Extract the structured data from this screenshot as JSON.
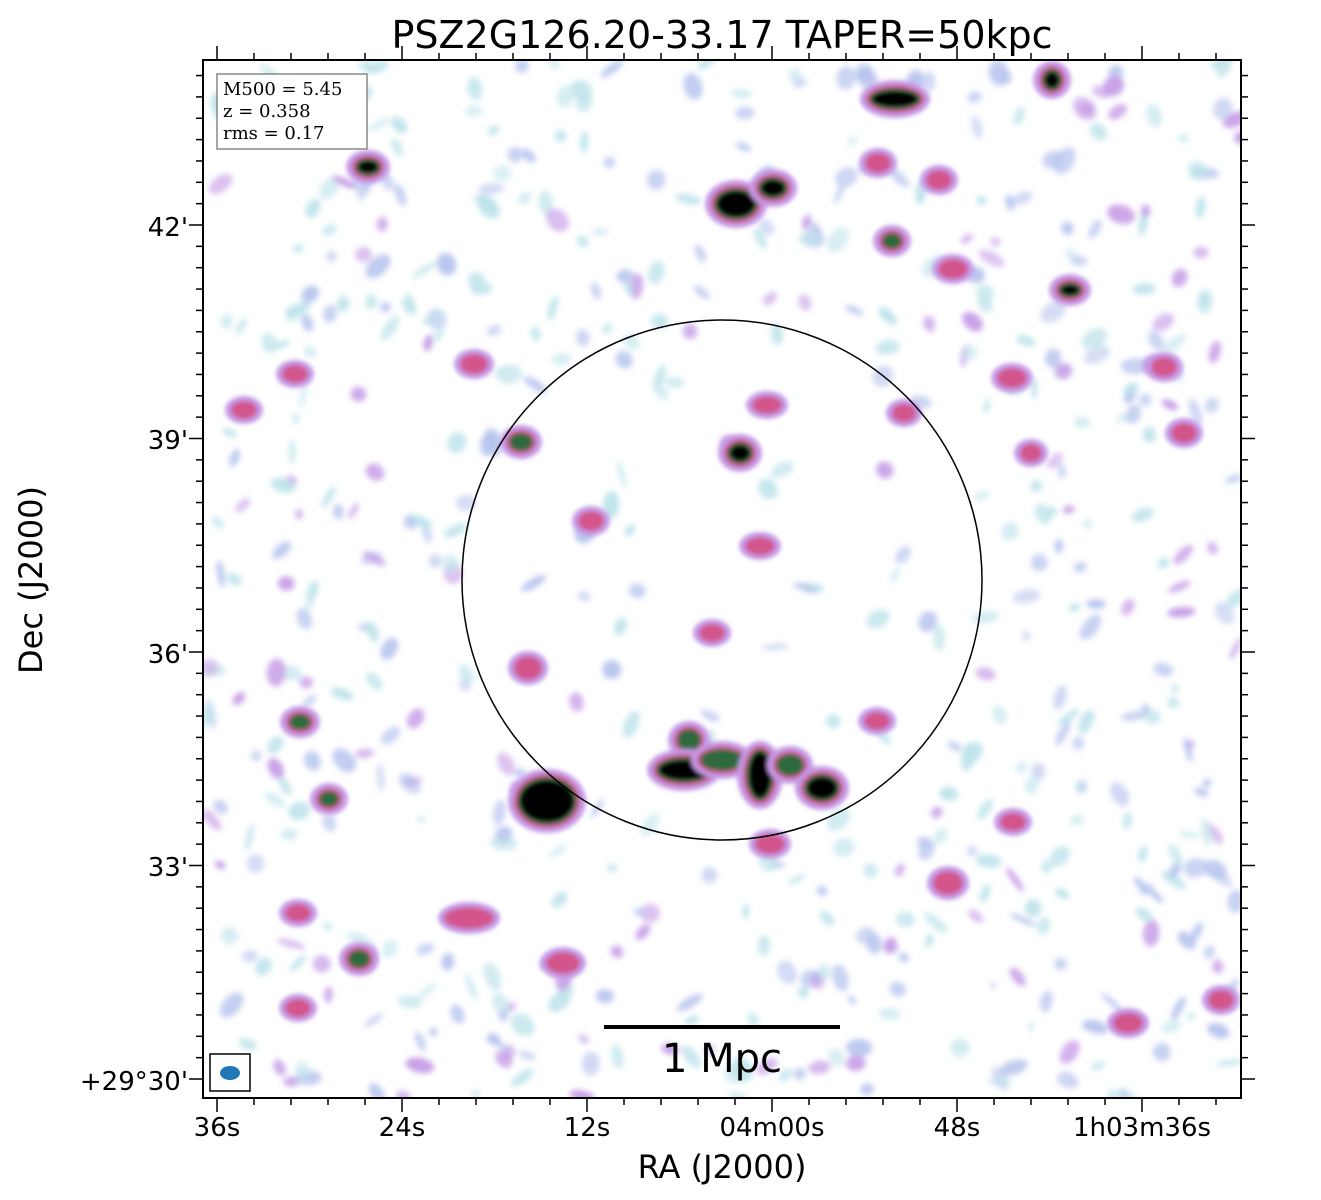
{
  "title": "PSZ2G126.20-33.17 TAPER=50kpc",
  "xlabel": "RA (J2000)",
  "ylabel": "Dec (J2000)",
  "x_tick_labels": [
    "36s",
    "24s",
    "12s",
    "04m00s",
    "48s",
    "1h03m36s"
  ],
  "y_tick_labels": [
    "42'",
    "39'",
    "36'",
    "33'",
    "+29°30'"
  ],
  "info": {
    "line1": "M500 = 5.45",
    "line2": "z = 0.358",
    "line3": "rms = 0.17"
  },
  "scale_bar_label": "1 Mpc",
  "colors": {
    "beam": "#1f77b4",
    "noise_light": "#bde3ea",
    "noise_mid": "#b7c4ee",
    "noise_purple": "#c49ae6",
    "source_pink": "#d2558c",
    "source_green": "#2f6b3e",
    "source_core": "#000000"
  }
}
